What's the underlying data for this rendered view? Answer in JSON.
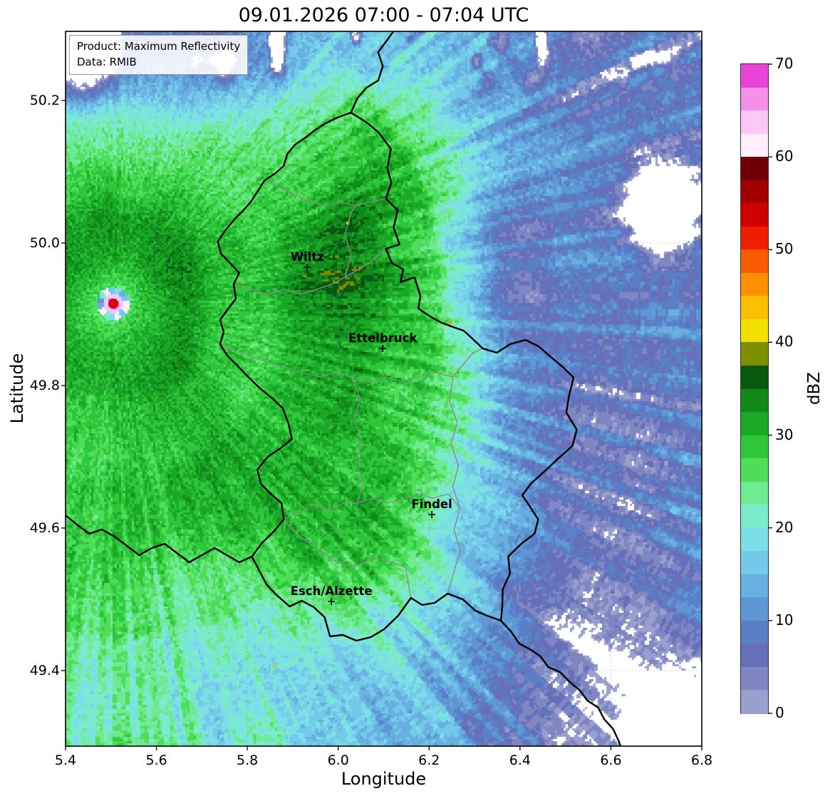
{
  "title": "09.01.2026 07:00 - 07:04 UTC",
  "info_box": {
    "product": "Product: Maximum Reflectivity",
    "source": "Data: RMIB"
  },
  "axes": {
    "xlabel": "Longitude",
    "ylabel": "Latitude",
    "xlim": [
      5.4,
      6.8
    ],
    "ylim": [
      49.294,
      50.297
    ],
    "x_ticks": [
      5.4,
      5.6,
      5.8,
      6.0,
      6.2,
      6.4,
      6.6,
      6.8
    ],
    "y_ticks": [
      49.4,
      49.6,
      49.8,
      50.0,
      50.2
    ],
    "grid": true
  },
  "colorbar": {
    "label": "dBZ",
    "min": 0,
    "max": 70,
    "step": 2.5,
    "ticks": [
      0,
      10,
      20,
      30,
      40,
      50,
      60,
      70
    ],
    "colors": [
      "#9aa0ce",
      "#7f87c3",
      "#6570b9",
      "#5a7fc6",
      "#5f97d5",
      "#68b0e0",
      "#73c9e8",
      "#7cdfe8",
      "#7beccb",
      "#70e993",
      "#4ede5a",
      "#2ec63a",
      "#1ba827",
      "#0f8a1a",
      "#075910",
      "#7d8f00",
      "#f2e000",
      "#fbbf00",
      "#fb9000",
      "#f75c00",
      "#f01e00",
      "#cf0000",
      "#a30000",
      "#6f0005",
      "#fdeffd",
      "#fac7f6",
      "#f590ea",
      "#e944d6"
    ]
  },
  "cities": [
    {
      "name": "Wiltz",
      "lon": 5.932,
      "lat": 49.966
    },
    {
      "name": "Ettelbruck",
      "lon": 6.098,
      "lat": 49.852
    },
    {
      "name": "Findel",
      "lon": 6.206,
      "lat": 49.619
    },
    {
      "name": "Esch/Alzette",
      "lon": 5.985,
      "lat": 49.497
    }
  ],
  "radar_site": {
    "lon": 5.505,
    "lat": 49.915,
    "dot_color": "#e8000b",
    "dot_edge": "#8b0000",
    "clutter_ring_color": "#f590ea"
  },
  "chart_data": {
    "type": "heatmap",
    "subtype": "weather_radar_maximum_reflectivity",
    "title": "09.01.2026 07:00 - 07:04 UTC",
    "xlabel": "Longitude",
    "ylabel": "Latitude",
    "xlim": [
      5.4,
      6.8
    ],
    "ylim": [
      49.294,
      50.297
    ],
    "colorbar": {
      "label": "dBZ",
      "range": [
        0,
        70
      ],
      "ticks": [
        0,
        10,
        20,
        30,
        40,
        50,
        60,
        70
      ],
      "bin_size_dbz": 2.5
    },
    "legend_position": "right",
    "grid": true,
    "regions": [
      {
        "name": "widespread stratiform rain west and center",
        "lon_range": [
          5.4,
          6.2
        ],
        "lat_range": [
          49.45,
          50.15
        ],
        "dbz_range": [
          20,
          30
        ]
      },
      {
        "name": "embedded stronger core north/east of Ettelbruck",
        "lon_range": [
          5.95,
          6.25
        ],
        "lat_range": [
          49.85,
          50.05
        ],
        "dbz_range": [
          30,
          37
        ]
      },
      {
        "name": "weak echoes with radial streaks to the east (Germany)",
        "lon_range": [
          6.25,
          6.8
        ],
        "lat_range": [
          49.3,
          50.3
        ],
        "dbz_range": [
          3,
          16
        ]
      },
      {
        "name": "weak slate-blue echoes northwest corner",
        "lon_range": [
          5.4,
          6.0
        ],
        "lat_range": [
          50.15,
          50.3
        ],
        "dbz_range": [
          0,
          10
        ]
      },
      {
        "name": "weak band along southern edge",
        "lon_range": [
          5.8,
          6.5
        ],
        "lat_range": [
          49.294,
          49.5
        ],
        "dbz_range": [
          5,
          16
        ]
      }
    ],
    "no_data_regions": [
      {
        "desc": "white patch top-left corner",
        "lon": 5.44,
        "lat": 50.28
      },
      {
        "desc": "white blob right-center",
        "lon": 6.72,
        "lat": 50.04
      },
      {
        "desc": "white patch bottom-right corner",
        "lon": 6.76,
        "lat": 49.3
      },
      {
        "desc": "scattered white specks along the top edge",
        "lon_range": [
          5.5,
          6.8
        ],
        "lat_range": [
          50.2,
          50.3
        ]
      }
    ],
    "radar_artifacts": {
      "radar_location": {
        "lon": 5.505,
        "lat": 49.915
      },
      "ground_clutter_dbz": [
        60,
        70
      ],
      "isolated_high_dbz_pixels": [
        {
          "lon": 6.021,
          "lat": 50.028,
          "dbz": 41
        },
        {
          "lon": 5.862,
          "lat": 49.407,
          "dbz": 44
        },
        {
          "lon": 6.243,
          "lat": 49.888,
          "dbz": 46
        },
        {
          "lon": 6.208,
          "lat": 49.757,
          "dbz": 38
        }
      ]
    }
  },
  "map": {
    "country_border_color": "#000000",
    "district_border_color": "#8a8a8a",
    "country_border": [
      [
        6.028,
        50.183
      ],
      [
        6.065,
        50.168
      ],
      [
        6.089,
        50.155
      ],
      [
        6.116,
        50.132
      ],
      [
        6.108,
        50.105
      ],
      [
        6.117,
        50.085
      ],
      [
        6.105,
        50.062
      ],
      [
        6.131,
        50.046
      ],
      [
        6.122,
        50.022
      ],
      [
        6.135,
        49.998
      ],
      [
        6.105,
        49.992
      ],
      [
        6.118,
        49.972
      ],
      [
        6.143,
        49.963
      ],
      [
        6.137,
        49.945
      ],
      [
        6.168,
        49.952
      ],
      [
        6.181,
        49.925
      ],
      [
        6.176,
        49.908
      ],
      [
        6.205,
        49.896
      ],
      [
        6.228,
        49.888
      ],
      [
        6.253,
        49.882
      ],
      [
        6.276,
        49.877
      ],
      [
        6.295,
        49.866
      ],
      [
        6.318,
        49.852
      ],
      [
        6.349,
        49.846
      ],
      [
        6.378,
        49.858
      ],
      [
        6.412,
        49.864
      ],
      [
        6.441,
        49.855
      ],
      [
        6.468,
        49.84
      ],
      [
        6.496,
        49.825
      ],
      [
        6.518,
        49.811
      ],
      [
        6.508,
        49.786
      ],
      [
        6.502,
        49.762
      ],
      [
        6.525,
        49.738
      ],
      [
        6.515,
        49.715
      ],
      [
        6.483,
        49.697
      ],
      [
        6.453,
        49.679
      ],
      [
        6.425,
        49.663
      ],
      [
        6.405,
        49.646
      ],
      [
        6.422,
        49.63
      ],
      [
        6.44,
        49.612
      ],
      [
        6.432,
        49.592
      ],
      [
        6.403,
        49.578
      ],
      [
        6.374,
        49.56
      ],
      [
        6.378,
        49.536
      ],
      [
        6.362,
        49.514
      ],
      [
        6.361,
        49.489
      ],
      [
        6.358,
        49.47
      ],
      [
        6.328,
        49.477
      ],
      [
        6.302,
        49.484
      ],
      [
        6.274,
        49.5
      ],
      [
        6.241,
        49.508
      ],
      [
        6.212,
        49.495
      ],
      [
        6.185,
        49.492
      ],
      [
        6.16,
        49.502
      ],
      [
        6.132,
        49.477
      ],
      [
        6.101,
        49.458
      ],
      [
        6.072,
        49.447
      ],
      [
        6.04,
        49.442
      ],
      [
        6.01,
        49.45
      ],
      [
        5.982,
        49.448
      ],
      [
        5.97,
        49.475
      ],
      [
        5.946,
        49.489
      ],
      [
        5.92,
        49.498
      ],
      [
        5.893,
        49.49
      ],
      [
        5.866,
        49.505
      ],
      [
        5.842,
        49.521
      ],
      [
        5.825,
        49.542
      ],
      [
        5.81,
        49.56
      ],
      [
        5.832,
        49.579
      ],
      [
        5.858,
        49.595
      ],
      [
        5.88,
        49.612
      ],
      [
        5.875,
        49.635
      ],
      [
        5.852,
        49.648
      ],
      [
        5.83,
        49.662
      ],
      [
        5.822,
        49.682
      ],
      [
        5.845,
        49.7
      ],
      [
        5.873,
        49.712
      ],
      [
        5.898,
        49.725
      ],
      [
        5.89,
        49.748
      ],
      [
        5.878,
        49.768
      ],
      [
        5.855,
        49.782
      ],
      [
        5.828,
        49.796
      ],
      [
        5.802,
        49.812
      ],
      [
        5.778,
        49.828
      ],
      [
        5.756,
        49.842
      ],
      [
        5.74,
        49.858
      ],
      [
        5.748,
        49.875
      ],
      [
        5.74,
        49.892
      ],
      [
        5.758,
        49.908
      ],
      [
        5.775,
        49.922
      ],
      [
        5.77,
        49.942
      ],
      [
        5.782,
        49.958
      ],
      [
        5.762,
        49.972
      ],
      [
        5.742,
        49.985
      ],
      [
        5.735,
        50.002
      ],
      [
        5.752,
        50.018
      ],
      [
        5.77,
        50.032
      ],
      [
        5.79,
        50.045
      ],
      [
        5.808,
        50.058
      ],
      [
        5.822,
        50.072
      ],
      [
        5.838,
        50.088
      ],
      [
        5.862,
        50.098
      ],
      [
        5.88,
        50.108
      ],
      [
        5.888,
        50.125
      ],
      [
        5.905,
        50.138
      ],
      [
        5.928,
        50.148
      ],
      [
        5.948,
        50.158
      ],
      [
        5.972,
        50.168
      ],
      [
        5.998,
        50.176
      ],
      [
        6.028,
        50.183
      ]
    ],
    "national_borders_extra": [
      {
        "name": "Belgium-Germany",
        "points": [
          [
            6.028,
            50.183
          ],
          [
            6.042,
            50.203
          ],
          [
            6.062,
            50.218
          ],
          [
            6.088,
            50.228
          ],
          [
            6.098,
            50.248
          ],
          [
            6.088,
            50.268
          ],
          [
            6.108,
            50.285
          ],
          [
            6.125,
            50.3
          ],
          [
            6.138,
            50.317
          ]
        ]
      },
      {
        "name": "France-Belgium",
        "points": [
          [
            5.81,
            49.56
          ],
          [
            5.782,
            49.552
          ],
          [
            5.755,
            49.562
          ],
          [
            5.728,
            49.572
          ],
          [
            5.7,
            49.562
          ],
          [
            5.672,
            49.552
          ],
          [
            5.645,
            49.565
          ],
          [
            5.618,
            49.578
          ],
          [
            5.59,
            49.572
          ],
          [
            5.562,
            49.562
          ],
          [
            5.535,
            49.575
          ],
          [
            5.508,
            49.588
          ],
          [
            5.48,
            49.598
          ],
          [
            5.452,
            49.592
          ],
          [
            5.425,
            49.605
          ],
          [
            5.4,
            49.618
          ]
        ]
      },
      {
        "name": "France-Germany",
        "points": [
          [
            6.358,
            49.47
          ],
          [
            6.38,
            49.455
          ],
          [
            6.398,
            49.438
          ],
          [
            6.422,
            49.43
          ],
          [
            6.445,
            49.42
          ],
          [
            6.462,
            49.405
          ],
          [
            6.488,
            49.398
          ],
          [
            6.508,
            49.385
          ],
          [
            6.532,
            49.372
          ],
          [
            6.548,
            49.358
          ],
          [
            6.572,
            49.348
          ],
          [
            6.585,
            49.332
          ],
          [
            6.605,
            49.318
          ],
          [
            6.618,
            49.3
          ],
          [
            6.625,
            49.285
          ]
        ]
      }
    ],
    "district_borders": [
      [
        [
          5.77,
          49.942
        ],
        [
          5.808,
          49.935
        ],
        [
          5.845,
          49.928
        ],
        [
          5.882,
          49.935
        ],
        [
          5.918,
          49.928
        ],
        [
          5.952,
          49.935
        ],
        [
          5.985,
          49.942
        ],
        [
          6.015,
          49.952
        ],
        [
          6.042,
          49.962
        ],
        [
          6.068,
          49.972
        ],
        [
          6.105,
          49.992
        ]
      ],
      [
        [
          5.838,
          50.088
        ],
        [
          5.872,
          50.078
        ],
        [
          5.905,
          50.068
        ],
        [
          5.938,
          50.058
        ],
        [
          5.972,
          50.052
        ],
        [
          6.005,
          50.058
        ],
        [
          6.038,
          50.052
        ],
        [
          6.072,
          50.058
        ],
        [
          6.105,
          50.062
        ]
      ],
      [
        [
          5.74,
          49.858
        ],
        [
          5.775,
          49.848
        ],
        [
          5.812,
          49.84
        ],
        [
          5.848,
          49.832
        ],
        [
          5.885,
          49.825
        ],
        [
          5.922,
          49.818
        ],
        [
          5.958,
          49.812
        ],
        [
          5.995,
          49.818
        ],
        [
          6.032,
          49.812
        ],
        [
          6.068,
          49.805
        ],
        [
          6.105,
          49.812
        ],
        [
          6.142,
          49.805
        ],
        [
          6.178,
          49.812
        ],
        [
          6.215,
          49.818
        ],
        [
          6.252,
          49.812
        ],
        [
          6.295,
          49.845
        ],
        [
          6.318,
          49.852
        ]
      ],
      [
        [
          6.252,
          49.812
        ],
        [
          6.245,
          49.778
        ],
        [
          6.262,
          49.748
        ],
        [
          6.248,
          49.718
        ],
        [
          6.265,
          49.688
        ],
        [
          6.252,
          49.658
        ],
        [
          6.268,
          49.628
        ],
        [
          6.255,
          49.598
        ],
        [
          6.268,
          49.568
        ],
        [
          6.241,
          49.508
        ]
      ],
      [
        [
          6.032,
          49.812
        ],
        [
          6.048,
          49.782
        ],
        [
          6.035,
          49.752
        ],
        [
          6.052,
          49.722
        ],
        [
          6.038,
          49.692
        ],
        [
          6.055,
          49.662
        ],
        [
          6.042,
          49.635
        ]
      ],
      [
        [
          5.88,
          49.612
        ],
        [
          5.912,
          49.622
        ],
        [
          5.945,
          49.632
        ],
        [
          5.978,
          49.625
        ],
        [
          6.012,
          49.635
        ],
        [
          6.042,
          49.635
        ],
        [
          6.075,
          49.642
        ],
        [
          6.108,
          49.635
        ],
        [
          6.142,
          49.642
        ],
        [
          6.175,
          49.648
        ],
        [
          6.208,
          49.642
        ],
        [
          6.242,
          49.648
        ],
        [
          6.268,
          49.628
        ]
      ],
      [
        [
          5.88,
          49.612
        ],
        [
          5.908,
          49.592
        ],
        [
          5.938,
          49.578
        ],
        [
          5.968,
          49.565
        ],
        [
          5.998,
          49.552
        ],
        [
          6.028,
          49.545
        ],
        [
          6.058,
          49.552
        ],
        [
          6.088,
          49.558
        ],
        [
          6.118,
          49.552
        ],
        [
          6.148,
          49.545
        ],
        [
          6.16,
          49.502
        ]
      ],
      [
        [
          6.015,
          49.952
        ],
        [
          6.028,
          49.982
        ],
        [
          6.015,
          50.012
        ],
        [
          6.028,
          50.042
        ],
        [
          6.038,
          50.052
        ]
      ]
    ]
  }
}
